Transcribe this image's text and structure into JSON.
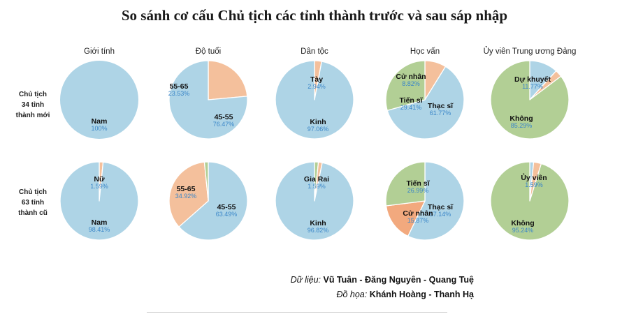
{
  "title": "So sánh cơ cấu Chủ tịch các tỉnh thành trước và sau sáp nhập",
  "columns": [
    "Giới tính",
    "Độ tuổi",
    "Dân tộc",
    "Học vấn",
    "Ủy viên Trung ương Đảng"
  ],
  "rows": [
    [
      "Chủ tịch",
      "34 tỉnh",
      "thành mới"
    ],
    [
      "Chủ tịch",
      "63 tỉnh",
      "thành cũ"
    ]
  ],
  "colors": {
    "blue": "#aed4e6",
    "orange": "#f4c09c",
    "green": "#b2cf95",
    "orange_dark": "#f2a97e",
    "label_name": "#111111",
    "label_pct": "#3a86c8",
    "border": "#ffffff"
  },
  "credits": {
    "data_label": "Dữ liệu:",
    "data_value": "Vũ Tuân - Đăng Nguyên - Quang Tuệ",
    "graphic_label": "Đồ họa:",
    "graphic_value": "Khánh Hoàng - Thanh Hạ"
  },
  "chart_data": [
    {
      "type": "pie",
      "row": "Chủ tịch 34 tỉnh thành mới",
      "column": "Giới tính",
      "slices": [
        {
          "label": "Nam",
          "pct_text": "100%",
          "value": 100,
          "color": "blue"
        }
      ]
    },
    {
      "type": "pie",
      "row": "Chủ tịch 34 tỉnh thành mới",
      "column": "Độ tuổi",
      "slices": [
        {
          "label": "55-65",
          "pct_text": "23.53%",
          "value": 23.53,
          "color": "orange"
        },
        {
          "label": "45-55",
          "pct_text": "76.47%",
          "value": 76.47,
          "color": "blue"
        }
      ]
    },
    {
      "type": "pie",
      "row": "Chủ tịch 34 tỉnh thành mới",
      "column": "Dân tộc",
      "slices": [
        {
          "label": "Tày",
          "pct_text": "2.94%",
          "value": 2.94,
          "color": "orange"
        },
        {
          "label": "Kinh",
          "pct_text": "97.06%",
          "value": 97.06,
          "color": "blue"
        }
      ]
    },
    {
      "type": "pie",
      "row": "Chủ tịch 34 tỉnh thành mới",
      "column": "Học vấn",
      "slices": [
        {
          "label": "Cử nhân",
          "pct_text": "8.82%",
          "value": 8.82,
          "color": "orange"
        },
        {
          "label": "Thạc sĩ",
          "pct_text": "61.77%",
          "value": 61.77,
          "color": "blue"
        },
        {
          "label": "Tiến sĩ",
          "pct_text": "29.41%",
          "value": 29.41,
          "color": "green"
        }
      ]
    },
    {
      "type": "pie",
      "row": "Chủ tịch 34 tỉnh thành mới",
      "column": "Ủy viên Trung ương Đảng",
      "slices": [
        {
          "label": "Dự khuyết",
          "pct_text": "11.77%",
          "value": 11.77,
          "color": "blue"
        },
        {
          "label": "",
          "pct_text": "",
          "value": 2.94,
          "color": "orange"
        },
        {
          "label": "Không",
          "pct_text": "85.29%",
          "value": 85.29,
          "color": "green"
        }
      ]
    },
    {
      "type": "pie",
      "row": "Chủ tịch 63 tỉnh thành cũ",
      "column": "Giới tính",
      "slices": [
        {
          "label": "Nữ",
          "pct_text": "1.59%",
          "value": 1.59,
          "color": "orange"
        },
        {
          "label": "Nam",
          "pct_text": "98.41%",
          "value": 98.41,
          "color": "blue"
        }
      ]
    },
    {
      "type": "pie",
      "row": "Chủ tịch 63 tỉnh thành cũ",
      "column": "Độ tuổi",
      "slices": [
        {
          "label": "45-55",
          "pct_text": "63.49%",
          "value": 63.49,
          "color": "blue"
        },
        {
          "label": "55-65",
          "pct_text": "34.92%",
          "value": 34.92,
          "color": "orange"
        },
        {
          "label": "",
          "pct_text": "",
          "value": 1.59,
          "color": "green"
        }
      ]
    },
    {
      "type": "pie",
      "row": "Chủ tịch 63 tỉnh thành cũ",
      "column": "Dân tộc",
      "slices": [
        {
          "label": "",
          "pct_text": "",
          "value": 1.59,
          "color": "green"
        },
        {
          "label": "Gia Rai",
          "pct_text": "1.59%",
          "value": 1.59,
          "color": "orange"
        },
        {
          "label": "Kinh",
          "pct_text": "96.82%",
          "value": 96.82,
          "color": "blue"
        }
      ]
    },
    {
      "type": "pie",
      "row": "Chủ tịch 63 tỉnh thành cũ",
      "column": "Học vấn",
      "slices": [
        {
          "label": "Thạc sĩ",
          "pct_text": "57.14%",
          "value": 57.14,
          "color": "blue"
        },
        {
          "label": "Cử nhân",
          "pct_text": "15.87%",
          "value": 15.87,
          "color": "orange_dark"
        },
        {
          "label": "Tiến sĩ",
          "pct_text": "26.99%",
          "value": 26.99,
          "color": "green"
        }
      ]
    },
    {
      "type": "pie",
      "row": "Chủ tịch 63 tỉnh thành cũ",
      "column": "Ủy viên Trung ương Đảng",
      "slices": [
        {
          "label": "Ủy viên",
          "pct_text": "1.59%",
          "value": 1.59,
          "color": "blue"
        },
        {
          "label": "",
          "pct_text": "",
          "value": 3.17,
          "color": "orange"
        },
        {
          "label": "Không",
          "pct_text": "95.24%",
          "value": 95.24,
          "color": "green"
        }
      ]
    }
  ]
}
